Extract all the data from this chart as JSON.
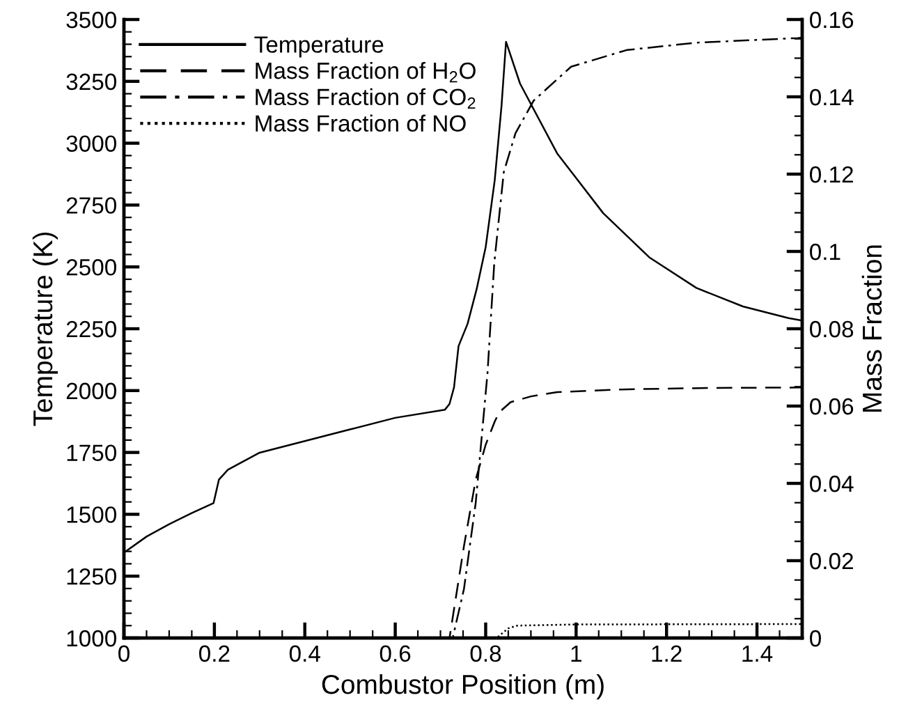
{
  "chart_data": {
    "type": "line",
    "xlabel": "Combustor Position (m)",
    "ylabel": "Temperature (K)",
    "y2label": "Mass Fraction",
    "xlim": [
      0,
      1.5
    ],
    "xticks": [
      0,
      0.2,
      0.4,
      0.6,
      0.8,
      1,
      1.2,
      1.4
    ],
    "ylim": [
      1000,
      3500
    ],
    "yticks": [
      1000,
      1250,
      1500,
      1750,
      2000,
      2250,
      2500,
      2750,
      3000,
      3250,
      3500
    ],
    "y2lim": [
      0,
      0.16
    ],
    "y2ticks": [
      0,
      0.02,
      0.04,
      0.06,
      0.08,
      0.1,
      0.12,
      0.14,
      0.16
    ],
    "grid": false,
    "legend": "top left",
    "marker": "none",
    "series": [
      {
        "name": "Temperature",
        "color": "#000000",
        "line_style": "solid",
        "x": [
          0,
          0.05,
          0.1,
          0.15,
          0.198,
          0.2,
          0.21,
          0.23,
          0.25,
          0.3,
          0.4,
          0.5,
          0.6,
          0.71,
          0.72,
          0.73,
          0.74,
          0.76,
          0.78,
          0.8,
          0.82,
          0.835,
          0.845,
          0.876,
          0.958,
          1.06,
          1.163,
          1.266,
          1.369,
          1.47,
          1.5
        ],
        "values": [
          1345,
          1410,
          1460,
          1505,
          1545,
          1560,
          1640,
          1680,
          1700,
          1749,
          1796,
          1843,
          1890,
          1923,
          1946,
          2013,
          2180,
          2270,
          2410,
          2580,
          2850,
          3150,
          3410,
          3241,
          2959,
          2717,
          2537,
          2415,
          2340,
          2293,
          2283
        ]
      },
      {
        "name": "Mass Fraction of H$_{2}$O",
        "color": "#000000",
        "line_style": "dashed",
        "axis": "y2",
        "x": [
          0,
          0.72,
          0.752,
          0.778,
          0.8,
          0.82,
          0.83,
          0.855,
          0.9,
          0.958,
          1.1,
          1.3,
          1.5
        ],
        "values": [
          0,
          0,
          0.0238,
          0.041,
          0.05,
          0.056,
          0.0584,
          0.061,
          0.0625,
          0.0636,
          0.0643,
          0.0647,
          0.0648
        ]
      },
      {
        "name": "Mass Fraction of CO$_{2}$",
        "color": "#000000",
        "line_style": "dashdot",
        "axis": "y2",
        "x": [
          0,
          0.727,
          0.752,
          0.778,
          0.804,
          0.819,
          0.84,
          0.866,
          0.906,
          0.989,
          1.112,
          1.266,
          1.49,
          1.5
        ],
        "values": [
          0,
          0,
          0.0127,
          0.035,
          0.0685,
          0.097,
          0.1205,
          0.1306,
          0.139,
          0.1478,
          0.1521,
          0.154,
          0.1552,
          0.1553
        ]
      },
      {
        "name": "Mass Fraction of NO",
        "color": "#000000",
        "line_style": "dotted",
        "axis": "y2",
        "x": [
          0,
          0.824,
          0.85,
          0.87,
          1.0,
          1.5
        ],
        "values": [
          0,
          0,
          0.0025,
          0.0032,
          0.0035,
          0.0036
        ]
      }
    ]
  }
}
